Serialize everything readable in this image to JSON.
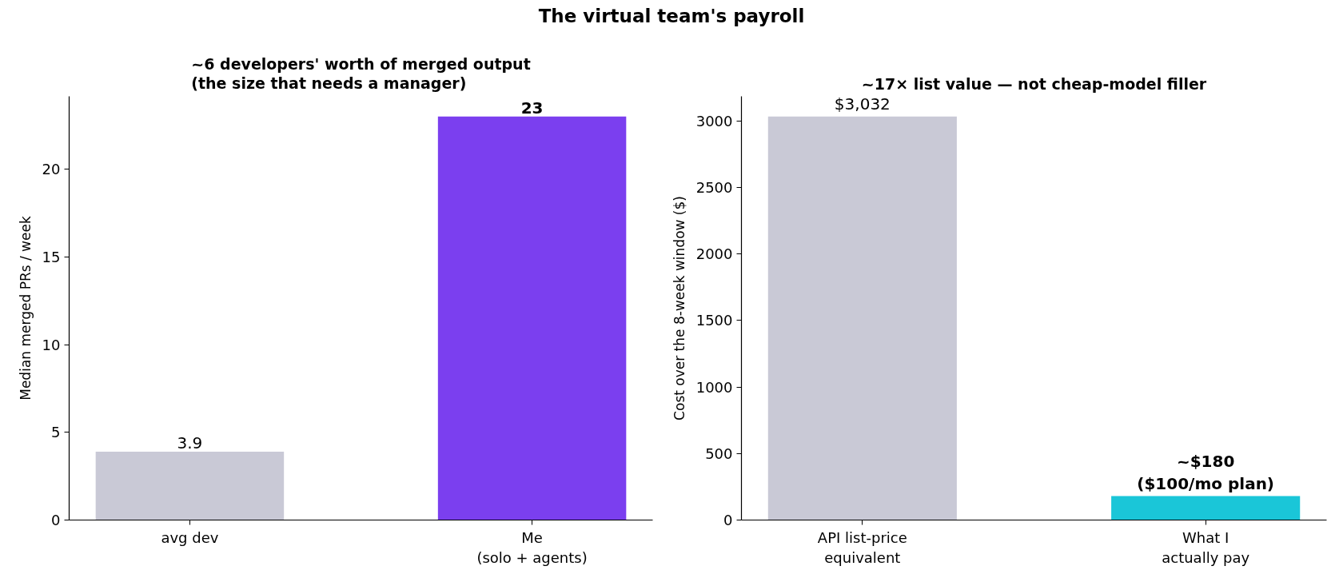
{
  "chart_data": [
    {
      "type": "other",
      "title": "The virtual team's payroll"
    },
    {
      "type": "bar",
      "title": "~6 developers' worth of merged output\n(the size that needs a manager)",
      "ylabel": "Median merged PRs / week",
      "categories": [
        "avg dev",
        "Me\n(solo + agents)"
      ],
      "values": [
        3.9,
        23
      ],
      "colors": [
        "#c9c9d6",
        "#7b3fef"
      ],
      "ylim": [
        0,
        24.15
      ],
      "yticks": [
        0,
        5,
        10,
        15,
        20
      ],
      "data_labels": true
    },
    {
      "type": "bar",
      "title": "~17× list value — not cheap-model filler",
      "ylabel": "Cost over the 8-week window ($)",
      "categories": [
        "API list-price\nequivalent",
        "What I\nactually pay"
      ],
      "values": [
        3032,
        180
      ],
      "colors": [
        "#c9c9d6",
        "#1ac6d8"
      ],
      "ylim": [
        0,
        3183.6
      ],
      "yticks": [
        0,
        500,
        1000,
        1500,
        2000,
        2500,
        3000
      ],
      "value_labels": [
        "$3,032",
        "~$180\n($100/mo plan)"
      ]
    }
  ]
}
